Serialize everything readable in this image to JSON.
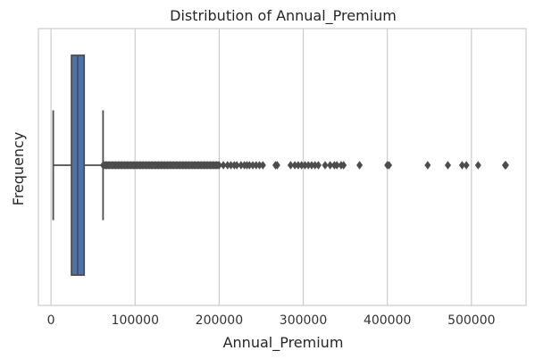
{
  "chart_data": {
    "type": "box",
    "title": "Distribution of Annual_Premium",
    "xlabel": "Annual_Premium",
    "ylabel": "Frequency",
    "xlim": [
      -15000,
      565000
    ],
    "x_ticks": [
      0,
      100000,
      200000,
      300000,
      400000,
      500000
    ],
    "x_tick_labels": [
      "0",
      "100000",
      "200000",
      "300000",
      "400000",
      "500000"
    ],
    "grid": "vertical",
    "orientation": "horizontal",
    "box_color": "#4c72b0",
    "line_color": "#4d4d4d",
    "box": {
      "whisker_low": 2630,
      "q1": 24400,
      "median": 31700,
      "q3": 39400,
      "whisker_high": 61900
    },
    "dense_outlier_range": [
      62000,
      200000
    ],
    "outliers": [
      205000,
      210000,
      214000,
      218000,
      221000,
      226000,
      230000,
      233000,
      236000,
      240000,
      244000,
      248000,
      252000,
      267000,
      269000,
      285000,
      290000,
      294000,
      298000,
      302000,
      306000,
      310000,
      314000,
      318000,
      326000,
      332000,
      337000,
      340000,
      345000,
      348000,
      367000,
      400000,
      402000,
      448000,
      472000,
      489000,
      494000,
      508000,
      540000,
      541000
    ]
  }
}
